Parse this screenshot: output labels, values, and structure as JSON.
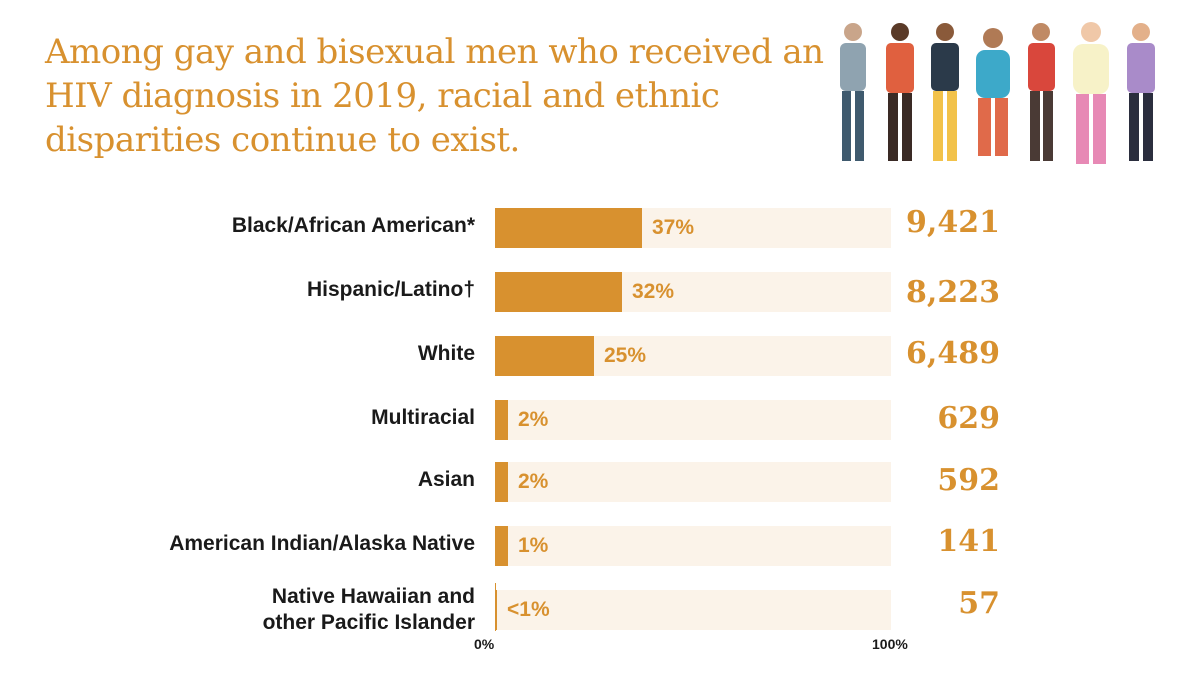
{
  "title": "Among gay and bisexual men who received an HIV diagnosis in 2019, racial and ethnic disparities continue to exist.",
  "colors": {
    "accent": "#D8912F",
    "track": "#FBF3E9",
    "label": "#1a1a1a"
  },
  "chart_data": {
    "type": "bar",
    "orientation": "horizontal",
    "categories": [
      "Black/African American*",
      "Hispanic/Latino†",
      "White",
      "Multiracial",
      "Asian",
      "American Indian/Alaska Native",
      "Native Hawaiian and other Pacific Islander"
    ],
    "values": [
      37,
      32,
      25,
      2,
      2,
      1,
      0.3
    ],
    "value_labels": [
      "37%",
      "32%",
      "25%",
      "2%",
      "2%",
      "1%",
      "<1%"
    ],
    "counts": [
      "9,421",
      "8,223",
      "6,489",
      "629",
      "592",
      "141",
      "57"
    ],
    "xlim": [
      0,
      100
    ],
    "x_ticks": [
      "0%",
      "100%"
    ],
    "grid": false,
    "legend": "none"
  }
}
